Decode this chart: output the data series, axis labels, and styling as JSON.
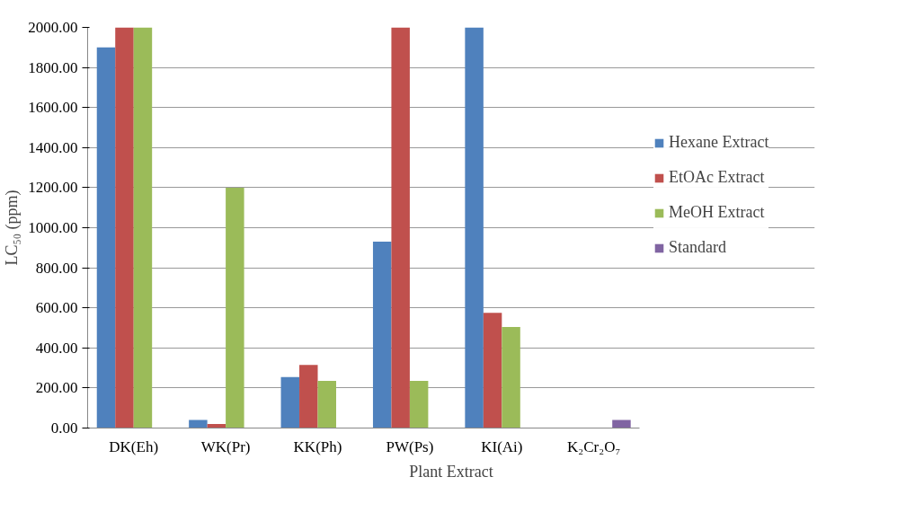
{
  "chart_data": {
    "type": "bar",
    "xlabel": "Plant Extract",
    "ylabel": "LC₅₀ (ppm)",
    "categories": [
      "DK(Eh)",
      "WK(Pr)",
      "KK(Ph)",
      "PW(Ps)",
      "KI(Ai)",
      "K₂Cr₂O₇"
    ],
    "series": [
      {
        "name": "Hexane Extract",
        "color": "#4f81bd",
        "values": [
          1900,
          40,
          255,
          930,
          2000,
          null
        ]
      },
      {
        "name": "EtOAc Extract",
        "color": "#c0504d",
        "values": [
          2000,
          20,
          315,
          2000,
          575,
          null
        ]
      },
      {
        "name": "MeOH Extract",
        "color": "#9bbb59",
        "values": [
          2000,
          1200,
          235,
          235,
          505,
          null
        ]
      },
      {
        "name": "Standard",
        "color": "#8064a2",
        "values": [
          null,
          null,
          null,
          null,
          null,
          40
        ]
      }
    ],
    "ylim": [
      0,
      2000
    ],
    "yticks": [
      {
        "value": 0,
        "label": "0.00"
      },
      {
        "value": 200,
        "label": "200.00"
      },
      {
        "value": 400,
        "label": "400.00"
      },
      {
        "value": 600,
        "label": "600.00"
      },
      {
        "value": 800,
        "label": "800.00"
      },
      {
        "value": 1000,
        "label": "1000.00"
      },
      {
        "value": 1200,
        "label": "1200.00"
      },
      {
        "value": 1400,
        "label": "1400.00"
      },
      {
        "value": 1600,
        "label": "1600.00"
      },
      {
        "value": 1800,
        "label": "1800.00"
      },
      {
        "value": 2000,
        "label": "2000.00"
      }
    ],
    "grid": "y",
    "legend": "right"
  }
}
